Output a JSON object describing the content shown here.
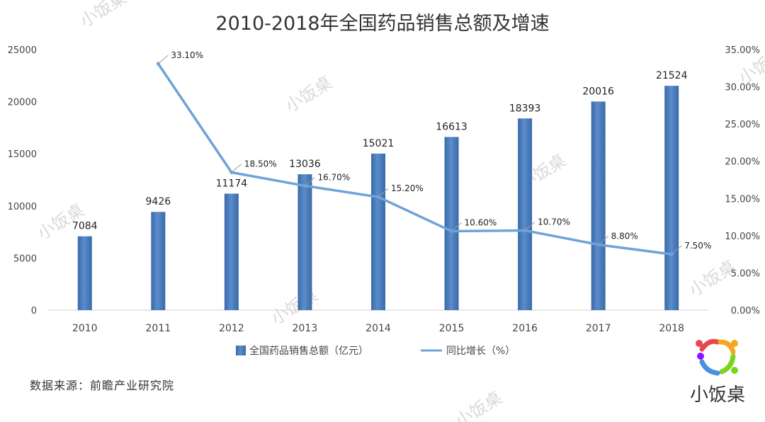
{
  "chart_data": {
    "type": "bar",
    "title": "2010-2018年全国药品销售总额及增速",
    "categories": [
      "2010",
      "2011",
      "2012",
      "2013",
      "2014",
      "2015",
      "2016",
      "2017",
      "2018"
    ],
    "series": [
      {
        "name": "全国药品销售总额（亿元）",
        "type": "bar",
        "axis": "left",
        "color": "#4a7ab5",
        "values": [
          7084,
          9426,
          11174,
          13036,
          15021,
          16613,
          18393,
          20016,
          21524
        ]
      },
      {
        "name": "同比增长（%）",
        "type": "line",
        "axis": "right",
        "color": "#6fa3d8",
        "values": [
          null,
          33.1,
          18.5,
          16.7,
          15.2,
          10.6,
          10.7,
          8.8,
          7.5
        ],
        "labels": [
          "",
          "33.10%",
          "18.50%",
          "16.70%",
          "15.20%",
          "10.60%",
          "10.70%",
          "8.80%",
          "7.50%"
        ]
      }
    ],
    "y_left": {
      "range": [
        0,
        25000
      ],
      "ticks": [
        "0",
        "5000",
        "10000",
        "15000",
        "20000",
        "25000"
      ]
    },
    "y_right": {
      "range": [
        0,
        35
      ],
      "ticks": [
        "0.00%",
        "5.00%",
        "10.00%",
        "15.00%",
        "20.00%",
        "25.00%",
        "30.00%",
        "35.00%"
      ]
    },
    "grid": false,
    "legend": "bottom"
  },
  "source": "数据来源：前瞻产业研究院",
  "watermark": "小饭桌",
  "logo": {
    "text": "小饭桌",
    "colors": [
      "#e5484d",
      "#f5a623",
      "#7ed321",
      "#4a90e2",
      "#9013fe"
    ]
  }
}
